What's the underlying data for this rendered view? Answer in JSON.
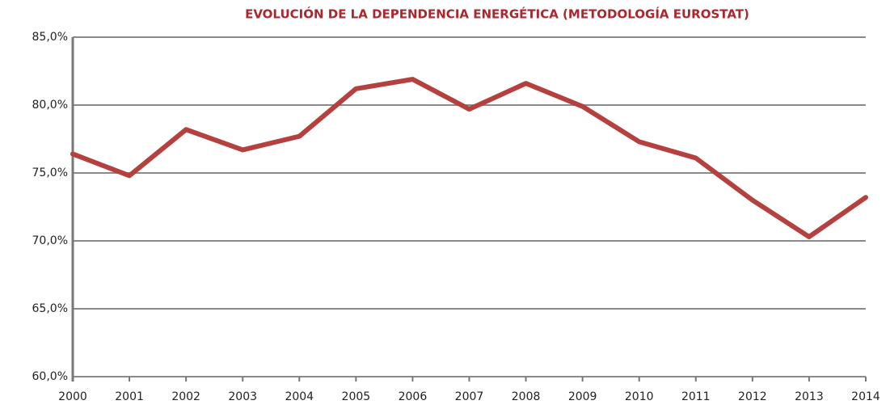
{
  "chart_data": {
    "type": "line",
    "title": "EVOLUCIÓN DE LA DEPENDENCIA ENERGÉTICA (METODOLOGÍA EUROSTAT)",
    "categories": [
      "2000",
      "2001",
      "2002",
      "2003",
      "2004",
      "2005",
      "2006",
      "2007",
      "2008",
      "2009",
      "2010",
      "2011",
      "2012",
      "2013",
      "2014"
    ],
    "series": [
      {
        "color": "#b5413f",
        "values": [
          76.4,
          74.8,
          78.2,
          76.7,
          77.7,
          81.2,
          81.9,
          79.7,
          81.6,
          79.9,
          77.3,
          76.1,
          73.0,
          70.3,
          73.2
        ]
      }
    ],
    "ylim": [
      60,
      85
    ],
    "yticks": [
      {
        "value": 60,
        "label": "60,0%"
      },
      {
        "value": 65,
        "label": "65,0%"
      },
      {
        "value": 70,
        "label": "70,0%"
      },
      {
        "value": 75,
        "label": "75,0%"
      },
      {
        "value": 80,
        "label": "80,0%"
      },
      {
        "value": 85,
        "label": "85,0%"
      }
    ],
    "grid": true
  }
}
